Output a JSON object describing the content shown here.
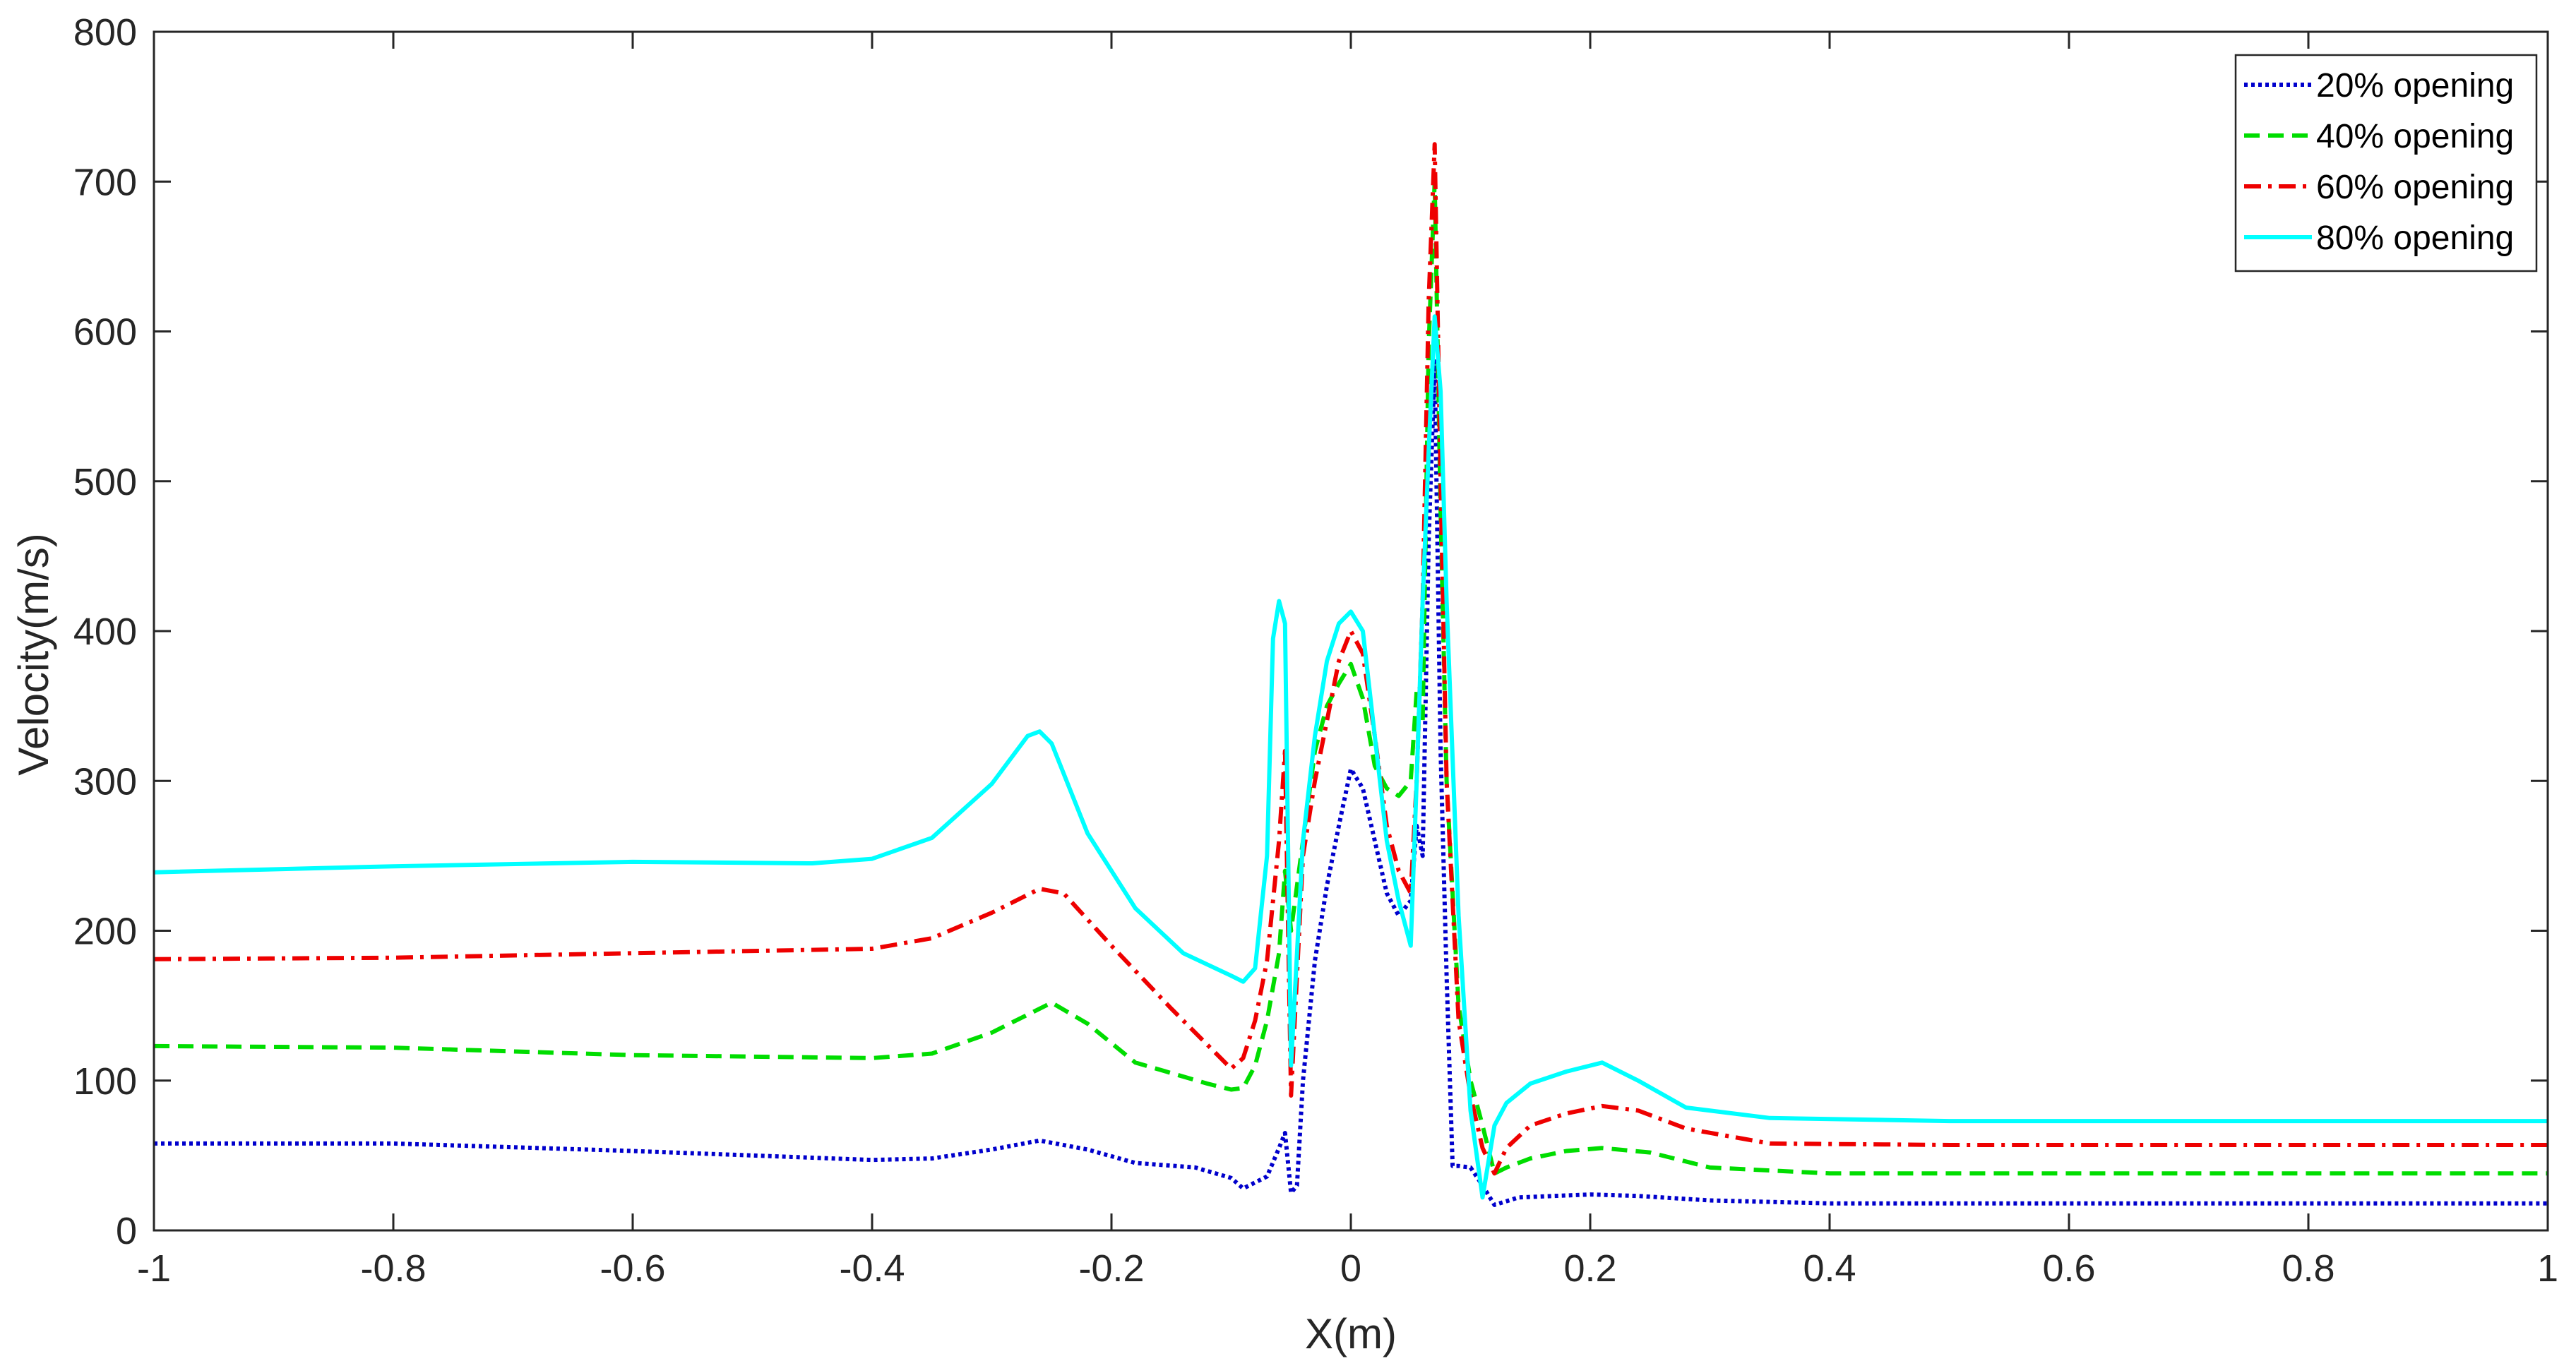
{
  "chart_data": {
    "type": "line",
    "xlabel": "X(m)",
    "ylabel": "Velocity(m/s)",
    "xlim": [
      -1,
      1
    ],
    "ylim": [
      0,
      800
    ],
    "xticks": [
      -1,
      -0.8,
      -0.6,
      -0.4,
      -0.2,
      0,
      0.2,
      0.4,
      0.6,
      0.8,
      1
    ],
    "xtick_labels": [
      "-1",
      "-0.8",
      "-0.6",
      "-0.4",
      "-0.2",
      "0",
      "0.2",
      "0.4",
      "0.6",
      "0.8",
      "1"
    ],
    "yticks": [
      0,
      100,
      200,
      300,
      400,
      500,
      600,
      700,
      800
    ],
    "ytick_labels": [
      "0",
      "100",
      "200",
      "300",
      "400",
      "500",
      "600",
      "700",
      "800"
    ],
    "grid": false,
    "legend_position": "top-right",
    "series": [
      {
        "name": "20% opening",
        "color": "#0000cc",
        "style": "dotted",
        "x": [
          -1,
          -0.8,
          -0.6,
          -0.4,
          -0.35,
          -0.3,
          -0.26,
          -0.22,
          -0.18,
          -0.13,
          -0.1,
          -0.09,
          -0.07,
          -0.06,
          -0.055,
          -0.05,
          -0.045,
          -0.04,
          -0.03,
          -0.02,
          -0.01,
          0,
          0.01,
          0.02,
          0.03,
          0.04,
          0.05,
          0.055,
          0.06,
          0.065,
          0.07,
          0.075,
          0.08,
          0.085,
          0.09,
          0.1,
          0.11,
          0.12,
          0.14,
          0.17,
          0.2,
          0.24,
          0.3,
          0.4,
          0.6,
          0.8,
          1
        ],
        "y": [
          58,
          58,
          53,
          47,
          48,
          54,
          60,
          54,
          45,
          42,
          35,
          28,
          36,
          55,
          65,
          25,
          30,
          100,
          180,
          230,
          270,
          308,
          295,
          260,
          225,
          210,
          220,
          270,
          250,
          460,
          580,
          320,
          170,
          43,
          43,
          42,
          30,
          17,
          22,
          23,
          24,
          23,
          20,
          18,
          18,
          18,
          18
        ]
      },
      {
        "name": "40% opening",
        "color": "#00dd00",
        "style": "dashed",
        "x": [
          -1,
          -0.8,
          -0.6,
          -0.4,
          -0.35,
          -0.3,
          -0.25,
          -0.22,
          -0.18,
          -0.12,
          -0.1,
          -0.09,
          -0.08,
          -0.07,
          -0.06,
          -0.055,
          -0.05,
          -0.04,
          -0.03,
          -0.02,
          -0.01,
          0,
          0.01,
          0.02,
          0.03,
          0.04,
          0.05,
          0.055,
          0.06,
          0.065,
          0.07,
          0.075,
          0.08,
          0.09,
          0.1,
          0.11,
          0.12,
          0.13,
          0.15,
          0.18,
          0.21,
          0.25,
          0.3,
          0.4,
          0.6,
          0.8,
          1
        ],
        "y": [
          123,
          122,
          117,
          115,
          118,
          132,
          152,
          138,
          112,
          98,
          94,
          95,
          110,
          140,
          185,
          240,
          200,
          260,
          320,
          350,
          365,
          378,
          355,
          310,
          295,
          290,
          300,
          360,
          340,
          590,
          700,
          480,
          300,
          150,
          100,
          70,
          38,
          42,
          48,
          53,
          55,
          52,
          42,
          38,
          38,
          38,
          38
        ]
      },
      {
        "name": "60% opening",
        "color": "#ee0000",
        "style": "dashdot",
        "x": [
          -1,
          -0.8,
          -0.6,
          -0.4,
          -0.35,
          -0.3,
          -0.26,
          -0.24,
          -0.2,
          -0.15,
          -0.1,
          -0.09,
          -0.08,
          -0.07,
          -0.06,
          -0.055,
          -0.05,
          -0.045,
          -0.04,
          -0.03,
          -0.02,
          -0.01,
          0,
          0.01,
          0.02,
          0.03,
          0.04,
          0.05,
          0.055,
          0.06,
          0.065,
          0.07,
          0.075,
          0.08,
          0.09,
          0.1,
          0.11,
          0.12,
          0.13,
          0.15,
          0.18,
          0.21,
          0.24,
          0.28,
          0.35,
          0.5,
          0.7,
          0.9,
          1
        ],
        "y": [
          181,
          182,
          185,
          188,
          195,
          212,
          228,
          225,
          190,
          148,
          108,
          115,
          140,
          180,
          260,
          320,
          90,
          170,
          250,
          300,
          340,
          380,
          400,
          385,
          330,
          270,
          240,
          225,
          300,
          420,
          620,
          725,
          500,
          300,
          140,
          90,
          55,
          38,
          55,
          70,
          78,
          83,
          80,
          68,
          58,
          57,
          57,
          57,
          57
        ]
      },
      {
        "name": "80% opening",
        "color": "#00ffff",
        "style": "solid",
        "x": [
          -1,
          -0.8,
          -0.6,
          -0.45,
          -0.4,
          -0.35,
          -0.3,
          -0.27,
          -0.26,
          -0.25,
          -0.22,
          -0.18,
          -0.14,
          -0.1,
          -0.09,
          -0.08,
          -0.07,
          -0.065,
          -0.06,
          -0.055,
          -0.05,
          -0.04,
          -0.03,
          -0.02,
          -0.01,
          0,
          0.01,
          0.02,
          0.03,
          0.04,
          0.05,
          0.055,
          0.06,
          0.065,
          0.07,
          0.075,
          0.08,
          0.09,
          0.1,
          0.11,
          0.12,
          0.13,
          0.15,
          0.18,
          0.21,
          0.24,
          0.28,
          0.35,
          0.5,
          0.7,
          0.9,
          1
        ],
        "y": [
          239,
          243,
          246,
          245,
          248,
          262,
          298,
          330,
          333,
          325,
          265,
          215,
          185,
          170,
          166,
          175,
          250,
          395,
          420,
          405,
          110,
          260,
          330,
          380,
          405,
          413,
          400,
          330,
          260,
          220,
          190,
          300,
          420,
          520,
          610,
          560,
          420,
          210,
          80,
          22,
          70,
          85,
          98,
          106,
          112,
          100,
          82,
          75,
          73,
          73,
          73,
          73
        ]
      }
    ]
  }
}
